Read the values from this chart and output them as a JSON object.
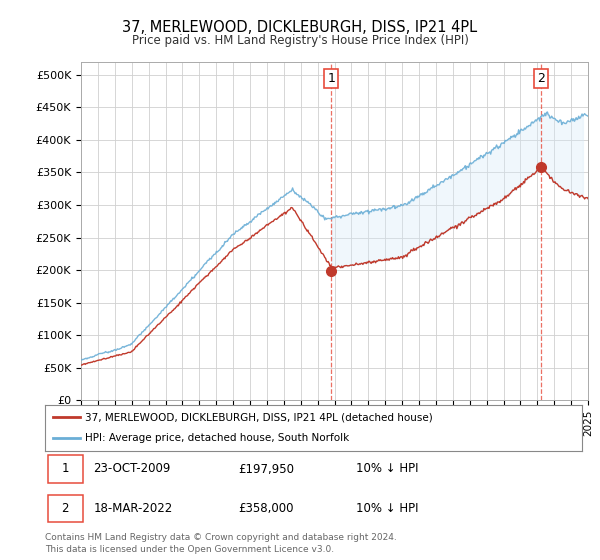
{
  "title": "37, MERLEWOOD, DICKLEBURGH, DISS, IP21 4PL",
  "subtitle": "Price paid vs. HM Land Registry's House Price Index (HPI)",
  "ylim": [
    0,
    520000
  ],
  "yticks": [
    0,
    50000,
    100000,
    150000,
    200000,
    250000,
    300000,
    350000,
    400000,
    450000,
    500000
  ],
  "ytick_labels": [
    "£0",
    "£50K",
    "£100K",
    "£150K",
    "£200K",
    "£250K",
    "£300K",
    "£350K",
    "£400K",
    "£450K",
    "£500K"
  ],
  "sale1_date": 2009.81,
  "sale1_price": 197950,
  "sale1_label": "1",
  "sale2_date": 2022.21,
  "sale2_price": 358000,
  "sale2_label": "2",
  "hpi_color": "#6aaed6",
  "hpi_fill_color": "#d6eaf8",
  "price_color": "#c0392b",
  "vline_color": "#e74c3c",
  "grid_color": "#d0d0d0",
  "background_color": "#ffffff",
  "legend_line1": "37, MERLEWOOD, DICKLEBURGH, DISS, IP21 4PL (detached house)",
  "legend_line2": "HPI: Average price, detached house, South Norfolk",
  "table_row1": [
    "1",
    "23-OCT-2009",
    "£197,950",
    "10% ↓ HPI"
  ],
  "table_row2": [
    "2",
    "18-MAR-2022",
    "£358,000",
    "10% ↓ HPI"
  ],
  "footer": "Contains HM Land Registry data © Crown copyright and database right 2024.\nThis data is licensed under the Open Government Licence v3.0.",
  "xmin": 1995,
  "xmax": 2025
}
